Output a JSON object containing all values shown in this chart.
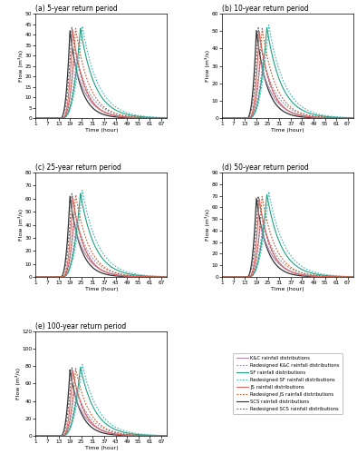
{
  "titles": [
    "(a) 5-year return period",
    "(b) 10-year return period",
    "(c) 25-year return period",
    "(d) 50-year return period",
    "(e) 100-year return period"
  ],
  "ylims": [
    50,
    60,
    80,
    90,
    120
  ],
  "yticks": [
    [
      0,
      5,
      10,
      15,
      20,
      25,
      30,
      35,
      40,
      45,
      50
    ],
    [
      0,
      10,
      20,
      30,
      40,
      50,
      60
    ],
    [
      0,
      10,
      20,
      30,
      40,
      50,
      60,
      70,
      80
    ],
    [
      0,
      10,
      20,
      30,
      40,
      50,
      60,
      70,
      80,
      90
    ],
    [
      0,
      20,
      40,
      60,
      80,
      100,
      120
    ]
  ],
  "xlabel": "Time (hour)",
  "ylabel": "Flow (m³/s)",
  "xtick_labels": [
    "1",
    "7",
    "13",
    "19",
    "25",
    "31",
    "37",
    "43",
    "49",
    "55",
    "61",
    "67"
  ],
  "xtick_positions": [
    1,
    7,
    13,
    19,
    25,
    31,
    37,
    43,
    49,
    55,
    61,
    67
  ],
  "colors": {
    "KC": "#b088b0",
    "KC_r": "#8888aa",
    "SF": "#20a080",
    "SF_r": "#40b8b8",
    "JS": "#e06868",
    "JS_r": "#c85828",
    "SCS": "#333333",
    "SCS_r": "#666666"
  },
  "legend_entries": [
    {
      "label": "K&C rainfall distributions",
      "color": "#b088b0",
      "ls": "-"
    },
    {
      "label": "Redesigned K&C rainfall distributions",
      "color": "#8888aa",
      "ls": ":"
    },
    {
      "label": "SF rainfall distributions",
      "color": "#20a080",
      "ls": "-"
    },
    {
      "label": "Redesigned SF rainfall distributions",
      "color": "#40b8b8",
      "ls": ":"
    },
    {
      "label": "JS rainfall distributions",
      "color": "#e06868",
      "ls": "-"
    },
    {
      "label": "Redesigned JS rainfall distributions",
      "color": "#c85828",
      "ls": ":"
    },
    {
      "label": "SCS rainfall distributions",
      "color": "#333333",
      "ls": "-"
    },
    {
      "label": "Redesigned SCS rainfall distributions",
      "color": "#666666",
      "ls": ":"
    }
  ],
  "scenarios": {
    "0": {
      "SCS": [
        42.0,
        14.0,
        19.0,
        2.5,
        0.18
      ],
      "SCS_r": [
        43.5,
        14.0,
        20.0,
        2.5,
        0.16
      ],
      "JS": [
        41.5,
        15.0,
        20.5,
        2.5,
        0.16
      ],
      "JS_r": [
        43.0,
        15.0,
        22.0,
        2.5,
        0.14
      ],
      "KC": [
        28.0,
        15.0,
        21.0,
        2.5,
        0.14
      ],
      "KC_r": [
        29.0,
        15.0,
        22.5,
        2.5,
        0.13
      ],
      "SF": [
        43.0,
        15.0,
        24.5,
        2.5,
        0.13
      ],
      "SF_r": [
        44.0,
        15.0,
        25.5,
        2.5,
        0.12
      ]
    },
    "1": {
      "SCS": [
        50.5,
        14.0,
        19.0,
        2.5,
        0.18
      ],
      "SCS_r": [
        52.0,
        14.0,
        20.0,
        2.5,
        0.16
      ],
      "JS": [
        49.5,
        15.0,
        20.5,
        2.5,
        0.16
      ],
      "JS_r": [
        51.5,
        15.0,
        22.0,
        2.5,
        0.14
      ],
      "KC": [
        33.0,
        15.0,
        21.0,
        2.5,
        0.14
      ],
      "KC_r": [
        34.5,
        15.0,
        22.5,
        2.5,
        0.13
      ],
      "SF": [
        52.0,
        15.0,
        24.5,
        2.5,
        0.13
      ],
      "SF_r": [
        53.5,
        15.0,
        25.5,
        2.5,
        0.12
      ]
    },
    "2": {
      "SCS": [
        62.0,
        14.0,
        19.0,
        2.5,
        0.18
      ],
      "SCS_r": [
        64.0,
        14.0,
        20.0,
        2.5,
        0.16
      ],
      "JS": [
        60.5,
        15.0,
        20.5,
        2.5,
        0.16
      ],
      "JS_r": [
        63.0,
        15.0,
        22.0,
        2.5,
        0.14
      ],
      "KC": [
        41.0,
        15.0,
        21.0,
        2.5,
        0.14
      ],
      "KC_r": [
        43.0,
        15.0,
        22.5,
        2.5,
        0.13
      ],
      "SF": [
        64.0,
        15.0,
        24.5,
        2.5,
        0.13
      ],
      "SF_r": [
        66.5,
        15.0,
        25.5,
        2.5,
        0.12
      ]
    },
    "3": {
      "SCS": [
        68.0,
        14.0,
        19.0,
        2.5,
        0.18
      ],
      "SCS_r": [
        70.0,
        14.0,
        20.0,
        2.5,
        0.16
      ],
      "JS": [
        67.0,
        15.0,
        20.5,
        2.5,
        0.16
      ],
      "JS_r": [
        69.5,
        15.0,
        22.0,
        2.5,
        0.14
      ],
      "KC": [
        45.0,
        15.0,
        21.0,
        2.5,
        0.14
      ],
      "KC_r": [
        47.0,
        15.0,
        22.5,
        2.5,
        0.13
      ],
      "SF": [
        71.0,
        15.0,
        24.5,
        2.5,
        0.13
      ],
      "SF_r": [
        73.5,
        15.0,
        25.5,
        2.5,
        0.12
      ]
    },
    "4": {
      "SCS": [
        76.0,
        14.0,
        19.0,
        2.5,
        0.18
      ],
      "SCS_r": [
        78.5,
        14.0,
        20.0,
        2.5,
        0.16
      ],
      "JS": [
        74.5,
        15.0,
        20.5,
        2.5,
        0.16
      ],
      "JS_r": [
        77.5,
        15.0,
        22.0,
        2.5,
        0.14
      ],
      "KC": [
        50.0,
        15.0,
        21.0,
        2.5,
        0.14
      ],
      "KC_r": [
        52.5,
        15.0,
        22.5,
        2.5,
        0.13
      ],
      "SF": [
        79.0,
        15.0,
        24.5,
        2.5,
        0.13
      ],
      "SF_r": [
        82.0,
        15.0,
        25.5,
        2.5,
        0.12
      ]
    }
  }
}
